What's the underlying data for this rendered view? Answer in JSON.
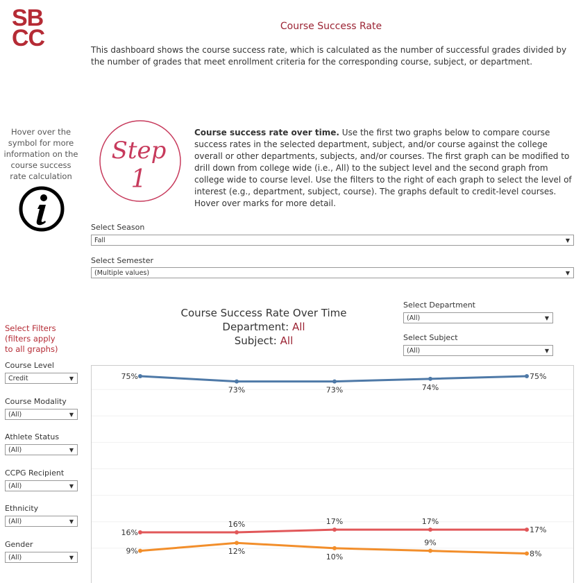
{
  "logo": "SBCC",
  "title": "Course Success Rate",
  "description": "This dashboard shows the course success rate, which is calculated as the number of successful grades divided by the number of grades that meet enrollment criteria for the corresponding course, subject, or department.",
  "hover_text": "Hover over the symbol for more information on the course success rate calculation",
  "step": {
    "word": "Step",
    "number": "1",
    "bold": "Course success rate over time.",
    "text": " Use the first two graphs below to compare course success rates in the selected department, subject, and/or course against the college overall or other departments, subjects, and/or courses. The first graph can be modified to drill down from college wide (i.e., All) to the subject level and the second graph from college wide to course level. Use the filters to the right of each graph to select the level of interest (e.g., department, subject, course). The graphs default to credit-level courses. Hover over marks for more detail."
  },
  "season": {
    "label": "Select Season",
    "value": "Fall"
  },
  "semester": {
    "label": "Select Semester",
    "value": "(Multiple values)"
  },
  "department": {
    "label": "Select Department",
    "value": "(All)"
  },
  "subject": {
    "label": "Select Subject",
    "value": "(All)"
  },
  "chart_header": {
    "title": "Course Success Rate Over Time",
    "dept_label": "Department: ",
    "dept_value": "All",
    "subj_label": "Subject: ",
    "subj_value": "All"
  },
  "filters": {
    "heading": "Select Filters (filters apply to all graphs)",
    "items": [
      {
        "label": "Course Level",
        "value": "Credit"
      },
      {
        "label": "Course Modality",
        "value": "(All)"
      },
      {
        "label": "Athlete Status",
        "value": "(All)"
      },
      {
        "label": "CCPG Recipient",
        "value": "(All)"
      },
      {
        "label": "Ethnicity",
        "value": "(All)"
      },
      {
        "label": "Gender",
        "value": "(All)"
      }
    ]
  },
  "chart_data": {
    "type": "line",
    "ylim": [
      0,
      80
    ],
    "grid": true,
    "series": [
      {
        "color": "#4e79a7",
        "values": [
          75,
          73,
          73,
          74,
          75
        ],
        "labels": [
          "75%",
          "73%",
          "73%",
          "74%",
          "75%"
        ]
      },
      {
        "color": "#e15759",
        "values": [
          16,
          16,
          17,
          17,
          17
        ],
        "labels": [
          "16%",
          "16%",
          "17%",
          "17%",
          "17%"
        ]
      },
      {
        "color": "#f28e2b",
        "values": [
          9,
          12,
          10,
          9,
          8
        ],
        "labels": [
          "9%",
          "12%",
          "10%",
          "9%",
          "8%"
        ]
      }
    ]
  }
}
